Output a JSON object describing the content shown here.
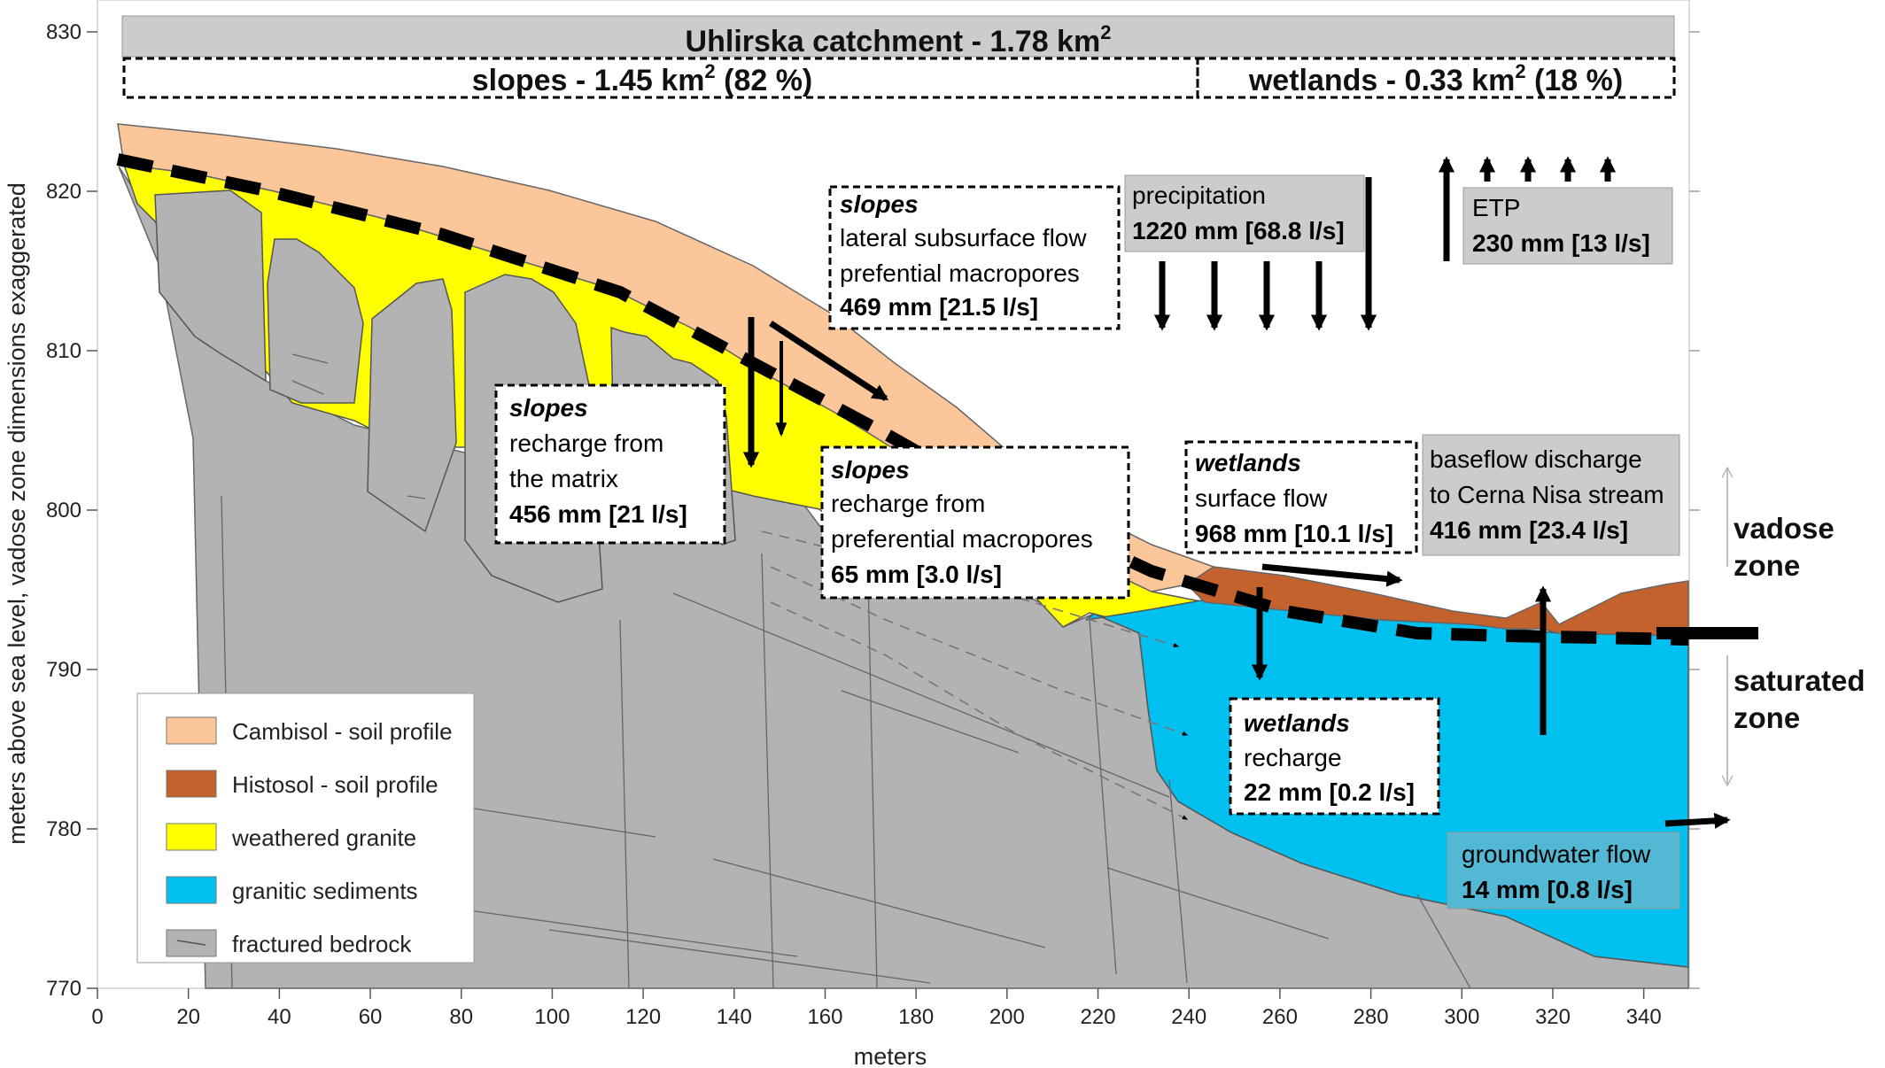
{
  "header": {
    "catchment_prefix": "Uhlirska catchment - 1.78 km",
    "catchment_sup": "2",
    "slopes_prefix": "slopes - 1.45 km",
    "slopes_sup": "2",
    "slopes_suffix": " (82 %)",
    "wetlands_prefix": "wetlands - 0.33 km",
    "wetlands_sup": "2",
    "wetlands_suffix": " (18 %)"
  },
  "axes": {
    "xlabel": "meters",
    "ylabel": "meters above sea level, vadose zone dimensions exaggerated",
    "x_ticks": [
      0,
      20,
      40,
      60,
      80,
      100,
      120,
      140,
      160,
      180,
      200,
      220,
      240,
      260,
      280,
      300,
      320,
      340
    ],
    "y_ticks": [
      770,
      780,
      790,
      800,
      810,
      820,
      830
    ],
    "xlim": [
      0,
      350
    ],
    "ylim": [
      770,
      832
    ]
  },
  "boxes": {
    "slopes_lateral": {
      "title": "slopes",
      "line1": "lateral subsurface flow",
      "line2": "prefential macropores",
      "value": "469 mm [21.5 l/s]"
    },
    "precipitation": {
      "label": "precipitation",
      "value": "1220 mm [68.8 l/s]"
    },
    "etp": {
      "label": "ETP",
      "value": "230 mm [13 l/s]"
    },
    "slopes_matrix": {
      "title": "slopes",
      "line1": "recharge from",
      "line2": "the matrix",
      "value": "456 mm [21 l/s]"
    },
    "slopes_macro": {
      "title": "slopes",
      "line1": "recharge from",
      "line2": "preferential macropores",
      "value": "65 mm [3.0 l/s]"
    },
    "wetlands_surface": {
      "title": "wetlands",
      "line1": "surface flow",
      "value": "968 mm [10.1 l/s]"
    },
    "baseflow": {
      "line1": "baseflow discharge",
      "line2": "to Cerna Nisa stream",
      "value": "416 mm [23.4 l/s]"
    },
    "wetlands_recharge": {
      "title": "wetlands",
      "line1": "recharge",
      "value": "22 mm [0.2 l/s]"
    },
    "groundwater": {
      "label": "groundwater flow",
      "value": "14 mm [0.8 l/s]"
    }
  },
  "zones": {
    "vadose_1": "vadose",
    "vadose_2": "zone",
    "saturated_1": "saturated",
    "saturated_2": "zone"
  },
  "legend": [
    {
      "label": "Cambisol - soil profile",
      "color": "#fbc79a"
    },
    {
      "label": "Histosol - soil profile",
      "color": "#c4622d"
    },
    {
      "label": "weathered granite",
      "color": "#ffff00"
    },
    {
      "label": "granitic sediments",
      "color": "#00c0f0"
    },
    {
      "label": "fractured bedrock",
      "color": "#b3b3b3"
    }
  ],
  "colors": {
    "cambisol": "#fbc79a",
    "histosol": "#c4622d",
    "weathered_granite": "#ffff00",
    "granitic_sediments": "#00c0f0",
    "fractured_bedrock": "#b3b3b3",
    "label_box": "#cccccc",
    "groundwater_box": "#52b8d4"
  }
}
